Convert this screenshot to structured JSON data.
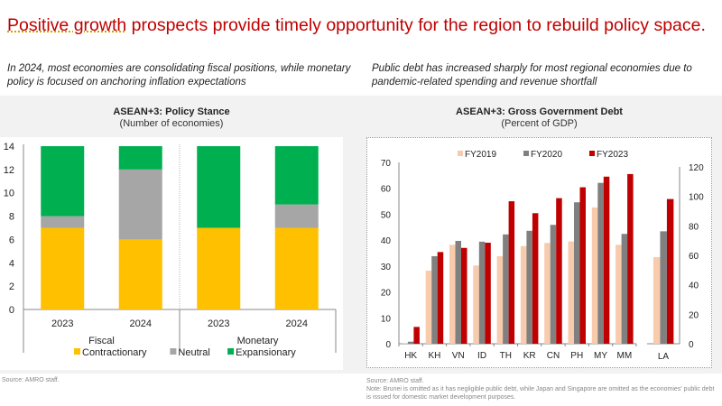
{
  "slide": {
    "title_underlined": "Positive growth",
    "title_rest": " prospects provide timely opportunity for the region to rebuild policy space.",
    "left_subtitle": "In 2024, most economies are consolidating fiscal positions, while monetary policy is focused on anchoring inflation expectations",
    "right_subtitle": "Public debt has increased sharply for most regional economies due to pandemic-related spending and revenue shortfall",
    "left_source": "Source: AMRO staff.",
    "right_source": "Source: AMRO staff.",
    "right_note": "Note: Brunei is omitted as it has negligible public debt, while Japan and Singapore are omitted as the economies' public debt is issued for domestic market development purposes."
  },
  "chart_data": [
    {
      "type": "bar",
      "stacked": true,
      "title": "ASEAN+3: Policy Stance",
      "subtitle": "(Number of economies)",
      "groups": [
        {
          "label": "Fiscal",
          "categories": [
            "2023",
            "2024"
          ]
        },
        {
          "label": "Monetary",
          "categories": [
            "2023",
            "2024"
          ]
        }
      ],
      "categories": [
        "Fiscal 2023",
        "Fiscal 2024",
        "Monetary 2023",
        "Monetary 2024"
      ],
      "category_labels": [
        "2023",
        "2024",
        "2023",
        "2024"
      ],
      "series": [
        {
          "name": "Contractionary",
          "color": "#ffc000",
          "values": [
            7,
            6,
            7,
            7
          ]
        },
        {
          "name": "Neutral",
          "color": "#a6a6a6",
          "values": [
            1,
            6,
            0,
            2
          ]
        },
        {
          "name": "Expansionary",
          "color": "#00b050",
          "values": [
            6,
            2,
            7,
            5
          ]
        }
      ],
      "ylim": [
        0,
        14
      ],
      "yticks": [
        0,
        2,
        4,
        6,
        8,
        10,
        12,
        14
      ],
      "xlabel": "",
      "ylabel": "",
      "legend": "bottom",
      "grid": false
    },
    {
      "type": "bar",
      "title": "ASEAN+3: Gross Government Debt",
      "subtitle": "(Percent of GDP)",
      "categories": [
        "HK",
        "KH",
        "VN",
        "ID",
        "TH",
        "KR",
        "CN",
        "PH",
        "MY",
        "MM"
      ],
      "series": [
        {
          "name": "FY2019",
          "color": "#f8cbad",
          "values": [
            0.1,
            28.2,
            38.2,
            30.2,
            33.8,
            37.7,
            38.9,
            39.5,
            52.6,
            38.2
          ]
        },
        {
          "name": "FY2020",
          "color": "#808080",
          "values": [
            0.8,
            33.8,
            39.7,
            39.4,
            42.2,
            43.6,
            45.9,
            54.6,
            62.1,
            42.4
          ]
        },
        {
          "name": "FY2023",
          "color": "#c00000",
          "values": [
            6.5,
            35.4,
            37.0,
            39.0,
            55.0,
            50.4,
            56.2,
            60.4,
            64.5,
            65.5
          ]
        }
      ],
      "ylim": [
        0,
        70
      ],
      "yticks": [
        0,
        10,
        20,
        30,
        40,
        50,
        60,
        70
      ],
      "secondary": {
        "categories": [
          "LA"
        ],
        "axis": "right",
        "ylim": [
          0,
          120
        ],
        "yticks": [
          0,
          20,
          40,
          60,
          80,
          100,
          120
        ],
        "series_values": {
          "FY2019": [
            58.8
          ],
          "FY2020": [
            76.3
          ],
          "FY2023": [
            98.2
          ]
        }
      },
      "xlabel": "",
      "ylabel": "",
      "legend": "top",
      "grid": false
    }
  ]
}
